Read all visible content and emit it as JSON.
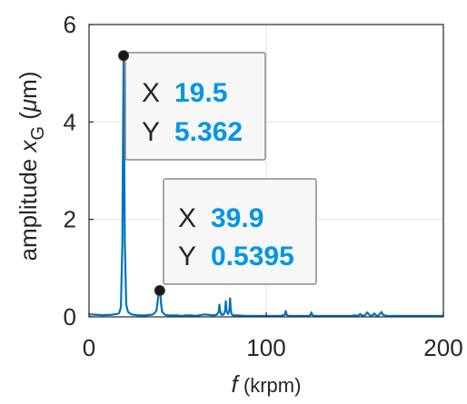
{
  "chart_data": {
    "type": "line",
    "title": "",
    "xlabel_italic": "f",
    "xlabel_rest": " (krpm)",
    "ylabel_main": "amplitude ",
    "ylabel_var": "x",
    "ylabel_sub": "G",
    "ylabel_unit_open": " (",
    "ylabel_unit_mu": "μ",
    "ylabel_unit_close": "m)",
    "xlim": [
      0,
      200
    ],
    "ylim": [
      0,
      6
    ],
    "xticks": [
      0,
      100,
      200
    ],
    "xtick_labels": [
      "0",
      "100",
      "200"
    ],
    "yticks": [
      0,
      2,
      4,
      6
    ],
    "ytick_labels": [
      "0",
      "2",
      "4",
      "6"
    ],
    "grid": true,
    "series_color": "#0072BD",
    "datatip_value_color": "#0096E6",
    "series": [
      {
        "x": [
          0,
          2,
          4,
          6,
          8,
          10,
          12,
          14,
          16,
          17,
          18,
          18.8,
          19.5,
          20.2,
          21,
          22,
          24,
          26,
          28,
          30,
          32,
          34,
          36,
          37,
          38,
          38.7,
          39.1,
          39.5,
          39.9,
          40.3,
          40.7,
          41.3,
          43,
          45,
          48,
          50,
          52,
          55,
          58,
          60,
          62,
          65,
          68,
          70,
          72,
          73.2,
          73.6,
          74,
          74.8,
          76,
          76.8,
          77.2,
          77.6,
          78.4,
          79.2,
          79.6,
          80,
          80.4,
          81.2,
          84,
          88,
          92,
          96,
          100,
          104,
          108,
          110.5,
          111,
          111.5,
          112.5,
          116,
          118,
          120,
          124,
          125,
          125.5,
          126,
          127,
          130,
          135,
          140,
          145,
          148,
          150,
          152,
          153,
          154,
          155,
          156,
          157,
          158,
          159,
          160,
          161,
          162,
          163,
          164,
          165,
          166,
          168,
          172,
          176,
          180,
          185,
          190,
          195,
          200
        ],
        "y": [
          0.05,
          0.05,
          0.04,
          0.04,
          0.03,
          0.04,
          0.04,
          0.05,
          0.06,
          0.08,
          0.2,
          1.5,
          5.362,
          1.5,
          0.25,
          0.1,
          0.05,
          0.04,
          0.03,
          0.03,
          0.03,
          0.04,
          0.05,
          0.08,
          0.12,
          0.3,
          0.45,
          0.5,
          0.5395,
          0.45,
          0.25,
          0.1,
          0.04,
          0.03,
          0.03,
          0.03,
          0.02,
          0.03,
          0.03,
          0.02,
          0.03,
          0.05,
          0.04,
          0.03,
          0.04,
          0.1,
          0.25,
          0.12,
          0.04,
          0.05,
          0.12,
          0.32,
          0.12,
          0.06,
          0.12,
          0.38,
          0.15,
          0.06,
          0.03,
          0.03,
          0.02,
          0.02,
          0.02,
          0.02,
          0.02,
          0.02,
          0.04,
          0.12,
          0.05,
          0.02,
          0.02,
          0.02,
          0.02,
          0.02,
          0.04,
          0.09,
          0.04,
          0.02,
          0.02,
          0.02,
          0.02,
          0.02,
          0.02,
          0.03,
          0.02,
          0.06,
          0.03,
          0.02,
          0.04,
          0.09,
          0.05,
          0.02,
          0.03,
          0.07,
          0.03,
          0.02,
          0.05,
          0.1,
          0.04,
          0.02,
          0.02,
          0.02,
          0.02,
          0.02,
          0.02,
          0.02,
          0.02
        ]
      }
    ],
    "datatips": [
      {
        "x": 19.5,
        "y": 5.362,
        "x_label": "X",
        "y_label": "Y",
        "x_text": "19.5",
        "y_text": "5.362"
      },
      {
        "x": 39.9,
        "y": 0.5395,
        "x_label": "X",
        "y_label": "Y",
        "x_text": "39.9",
        "y_text": "0.5395"
      }
    ]
  }
}
